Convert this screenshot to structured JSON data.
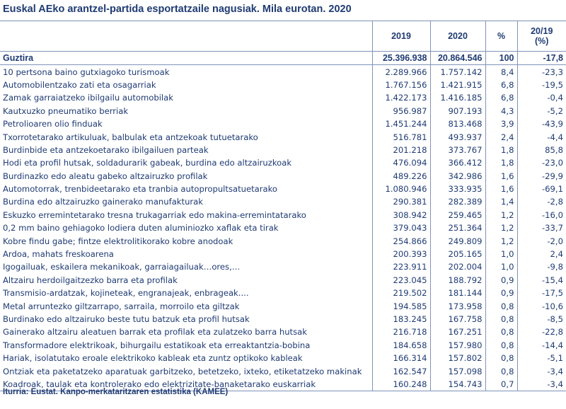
{
  "title": "Euskal AEko arantzel-partida esportatzaile nagusiak. Mila eurotan. 2020",
  "columns": {
    "y2019": "2019",
    "y2020": "2020",
    "pct": "%",
    "change_top": "20/19",
    "change_bottom": "(%)"
  },
  "total": {
    "label": "Guztira",
    "v2019": "25.396.938",
    "v2020": "20.864.546",
    "pct": "100",
    "change": "-17,8"
  },
  "rows": [
    {
      "label": "10 pertsona baino gutxiagoko turismoak",
      "v2019": "2.289.966",
      "v2020": "1.757.142",
      "pct": "8,4",
      "change": "-23,3"
    },
    {
      "label": "Automobilentzako zati eta osagarriak",
      "v2019": "1.767.156",
      "v2020": "1.421.915",
      "pct": "6,8",
      "change": "-19,5"
    },
    {
      "label": "Zamak garraiatzeko ibilgailu automobilak",
      "v2019": "1.422.173",
      "v2020": "1.416.185",
      "pct": "6,8",
      "change": "-0,4"
    },
    {
      "label": "Kautxuzko pneumatiko berriak",
      "v2019": "956.987",
      "v2020": "907.193",
      "pct": "4,3",
      "change": "-5,2"
    },
    {
      "label": "Petrolioaren olio finduak",
      "v2019": "1.451.244",
      "v2020": "813.468",
      "pct": "3,9",
      "change": "-43,9"
    },
    {
      "label": "Txorrotetarako artikuluak, balbulak eta antzekoak tutuetarako",
      "v2019": "516.781",
      "v2020": "493.937",
      "pct": "2,4",
      "change": "-4,4"
    },
    {
      "label": "Burdinbide eta antzekoetarako ibilgailuen parteak",
      "v2019": "201.218",
      "v2020": "373.767",
      "pct": "1,8",
      "change": "85,8"
    },
    {
      "label": "Hodi eta profil hutsak, soldadurarik gabeak, burdina edo altzairuzkoak",
      "v2019": "476.094",
      "v2020": "366.412",
      "pct": "1,8",
      "change": "-23,0"
    },
    {
      "label": "Burdinazko edo aleatu gabeko altzairuzko profilak",
      "v2019": "489.226",
      "v2020": "342.986",
      "pct": "1,6",
      "change": "-29,9"
    },
    {
      "label": "Automotorrak, trenbideetarako eta tranbia autopropultsatuetarako",
      "v2019": "1.080.946",
      "v2020": "333.935",
      "pct": "1,6",
      "change": "-69,1"
    },
    {
      "label": "Burdina edo altzairuzko gainerako manufakturak",
      "v2019": "290.381",
      "v2020": "282.389",
      "pct": "1,4",
      "change": "-2,8"
    },
    {
      "label": "Eskuzko erremintetarako tresna trukagarriak edo  makina-erremintatarako",
      "v2019": "308.942",
      "v2020": "259.465",
      "pct": "1,2",
      "change": "-16,0"
    },
    {
      "label": "0,2 mm baino gehiagoko lodiera duten aluminiozko xaflak eta tirak",
      "v2019": "379.043",
      "v2020": "251.364",
      "pct": "1,2",
      "change": "-33,7"
    },
    {
      "label": "Kobre findu gabe; fintze elektrolitikorako kobre anodoak",
      "v2019": "254.866",
      "v2020": "249.809",
      "pct": "1,2",
      "change": "-2,0"
    },
    {
      "label": "Ardoa, mahats freskoarena",
      "v2019": "200.393",
      "v2020": "205.165",
      "pct": "1,0",
      "change": "2,4"
    },
    {
      "label": "Igogailuak, eskailera mekanikoak, garraiagailuak…ores,…",
      "v2019": "223.911",
      "v2020": "202.004",
      "pct": "1,0",
      "change": "-9,8"
    },
    {
      "label": "Altzairu herdoilgaitzezko barra eta profilak",
      "v2019": "223.045",
      "v2020": "188.792",
      "pct": "0,9",
      "change": "-15,4"
    },
    {
      "label": "Transmisio-ardatzak, kojineteak, engranajeak, enbrageak....",
      "v2019": "219.502",
      "v2020": "181.144",
      "pct": "0,9",
      "change": "-17,5"
    },
    {
      "label": "Metal arruntezko giltzarrapo, sarraila, morroilo eta giltzak",
      "v2019": "194.585",
      "v2020": "173.958",
      "pct": "0,8",
      "change": "-10,6"
    },
    {
      "label": "Burdinako edo altzairuko beste tutu batzuk eta profil hutsak",
      "v2019": "183.245",
      "v2020": "167.758",
      "pct": "0,8",
      "change": "-8,5"
    },
    {
      "label": "Gainerako altzairu aleatuen barrak eta profilak eta zulatzeko barra hutsak",
      "v2019": "216.718",
      "v2020": "167.251",
      "pct": "0,8",
      "change": "-22,8"
    },
    {
      "label": "Transformadore elektrikoak, bihurgailu estatikoak eta erreaktantzia-bobina",
      "v2019": "184.658",
      "v2020": "157.980",
      "pct": "0,8",
      "change": "-14,4"
    },
    {
      "label": "Hariak, isolatutako eroale elektrikoko kableak eta zuntz optikoko kableak",
      "v2019": "166.314",
      "v2020": "157.802",
      "pct": "0,8",
      "change": "-5,1"
    },
    {
      "label": "Ontziak eta paketatzeko aparatuak garbitzeko, betetzeko, ixteko, etiketatzeko makinak",
      "v2019": "162.547",
      "v2020": "157.098",
      "pct": "0,8",
      "change": "-3,4"
    },
    {
      "label": "Koadroak, taulak eta kontrolerako edo elektrizitate-banaketarako euskarriak",
      "v2019": "160.248",
      "v2020": "154.743",
      "pct": "0,7",
      "change": "-3,4"
    }
  ],
  "source": "Iturria: Eustat. Kanpo-merkataritzaren estatistika (KAMEE)"
}
